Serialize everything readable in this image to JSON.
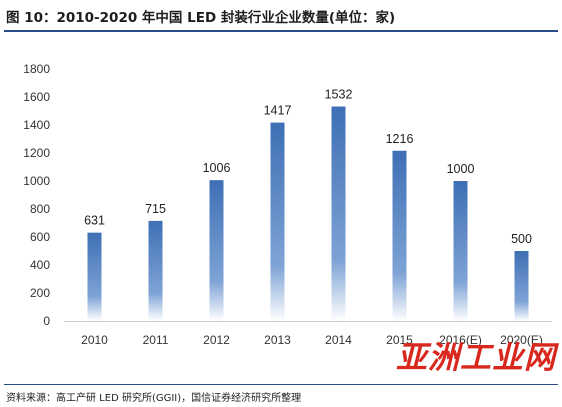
{
  "title": "图 10：2010-2020 年中国 LED 封装行业企业数量(单位：家)",
  "source": "资料来源：高工产研 LED 研究所(GGII)，国信证券经济研究所整理",
  "watermark": "亚洲工业网",
  "colors": {
    "bar_top": "#3e6fb4",
    "bar_bottom": "#ffffff",
    "rule": "#2a4c88",
    "watermark": "#d8271c"
  },
  "chart_data": {
    "type": "bar",
    "categories": [
      "2010",
      "2011",
      "2012",
      "2013",
      "2014",
      "2015",
      "2016(E)",
      "2020(E)"
    ],
    "values": [
      631,
      715,
      1006,
      1417,
      1532,
      1216,
      1000,
      500
    ],
    "data_labels": [
      "631",
      "715",
      "1006",
      "1417",
      "1532",
      "1216",
      "1000",
      "500"
    ],
    "ylim": [
      0,
      1800
    ],
    "yticks": [
      0,
      200,
      400,
      600,
      800,
      1000,
      1200,
      1400,
      1600,
      1800
    ],
    "grid": false,
    "legend": "none"
  }
}
